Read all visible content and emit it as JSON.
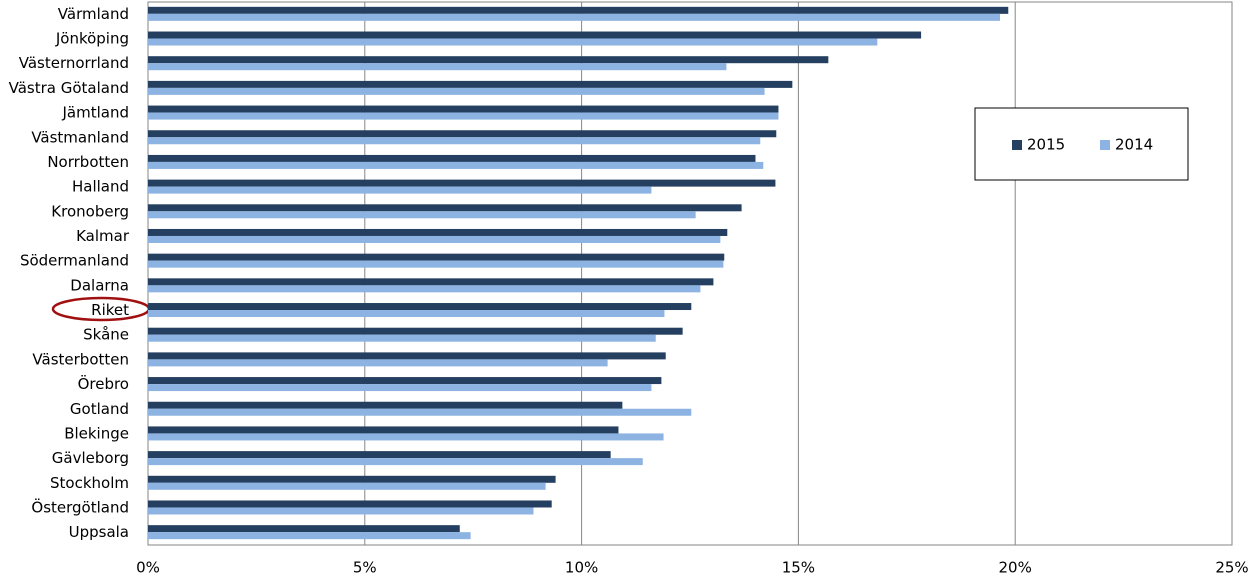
{
  "chart_data": {
    "type": "hbar",
    "categories": [
      "Värmland",
      "Jönköping",
      "Västernorrland",
      "Västra Götaland",
      "Jämtland",
      "Västmanland",
      "Norrbotten",
      "Halland",
      "Kronoberg",
      "Kalmar",
      "Södermanland",
      "Dalarna",
      "Riket",
      "Skåne",
      "Västerbotten",
      "Örebro",
      "Gotland",
      "Blekinge",
      "Gävleborg",
      "Stockholm",
      "Östergötland",
      "Uppsala"
    ],
    "series": [
      {
        "name": "2015",
        "color": "#243f60",
        "values": [
          19.84,
          17.83,
          15.69,
          14.86,
          14.54,
          14.49,
          14.01,
          14.47,
          13.69,
          13.36,
          13.29,
          13.04,
          12.53,
          12.33,
          11.94,
          11.84,
          10.94,
          10.85,
          10.67,
          9.4,
          9.31,
          7.19
        ]
      },
      {
        "name": "2014",
        "color": "#8db3e2",
        "values": [
          19.65,
          16.82,
          13.34,
          14.22,
          14.54,
          14.12,
          14.19,
          11.61,
          12.63,
          13.2,
          13.27,
          12.74,
          11.91,
          11.71,
          10.6,
          11.61,
          12.53,
          11.89,
          11.41,
          9.17,
          8.89,
          7.44
        ]
      }
    ],
    "xlim": [
      0,
      25
    ],
    "xticks": [
      {
        "value": 0,
        "label": "0%"
      },
      {
        "value": 5,
        "label": "5%"
      },
      {
        "value": 10,
        "label": "10%"
      },
      {
        "value": 15,
        "label": "15%"
      },
      {
        "value": 20,
        "label": "20%"
      },
      {
        "value": 25,
        "label": "25%"
      }
    ],
    "grid": true,
    "legend": "right"
  }
}
